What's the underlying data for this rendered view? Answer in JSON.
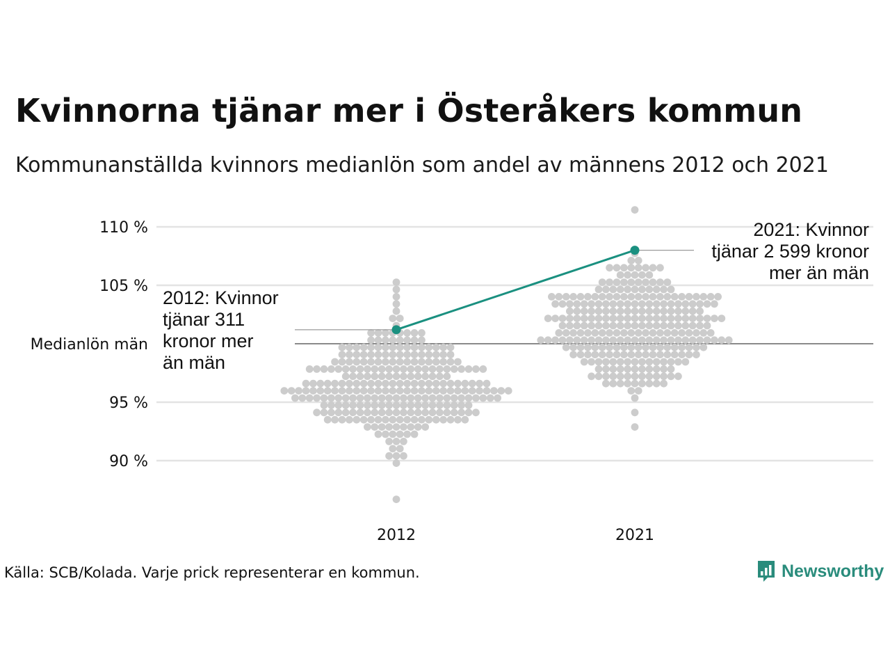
{
  "title": "Kvinnorna tjänar mer i Österåkers kommun",
  "subtitle": "Kommunanställda kvinnors medianlön som andel av männens 2012 och 2021",
  "footer": "Källa: SCB/Kolada. Varje prick representerar en kommun.",
  "logo": {
    "text": "Newsworthy",
    "icon": "bar-chart-speech-bubble-icon"
  },
  "colors": {
    "dots": "#cccccc",
    "highlight": "#1a9080",
    "grid": "#e3e3e3",
    "reference": "#444444",
    "text": "#111111"
  },
  "chart_data": {
    "type": "scatter",
    "subtype": "beeswarm",
    "title": "Kvinnorna tjänar mer i Österåkers kommun",
    "subtitle": "Kommunanställda kvinnors medianlön som andel av männens 2012 och 2021",
    "categories": [
      "2012",
      "2021"
    ],
    "ylim": [
      87,
      112
    ],
    "yticks": [
      {
        "value": 90,
        "label": "90 %"
      },
      {
        "value": 95,
        "label": "95 %"
      },
      {
        "value": 100,
        "label": "Medianlön män"
      },
      {
        "value": 105,
        "label": "105 %"
      },
      {
        "value": 110,
        "label": "110 %"
      }
    ],
    "grid": true,
    "reference_line": {
      "value": 100,
      "label": "Medianlön män"
    },
    "distributions": [
      {
        "category": "2012",
        "count": 290,
        "min": 86.6,
        "max": 105.1,
        "center": 96.3,
        "spread": 2.6
      },
      {
        "category": "2021",
        "count": 290,
        "min": 92.6,
        "max": 111.2,
        "center": 101.4,
        "spread": 2.5
      }
    ],
    "highlight": {
      "name": "Österåkers kommun",
      "values": [
        {
          "x": "2012",
          "y": 101.2
        },
        {
          "x": "2021",
          "y": 108.0
        }
      ],
      "annotations": [
        {
          "x": "2012",
          "lines": [
            "2012: Kvinnor",
            "tjänar 311",
            "kronor mer",
            "än män"
          ]
        },
        {
          "x": "2021",
          "lines": [
            "2021: Kvinnor",
            "tjänar 2 599 kronor",
            "mer än män"
          ]
        }
      ]
    }
  }
}
